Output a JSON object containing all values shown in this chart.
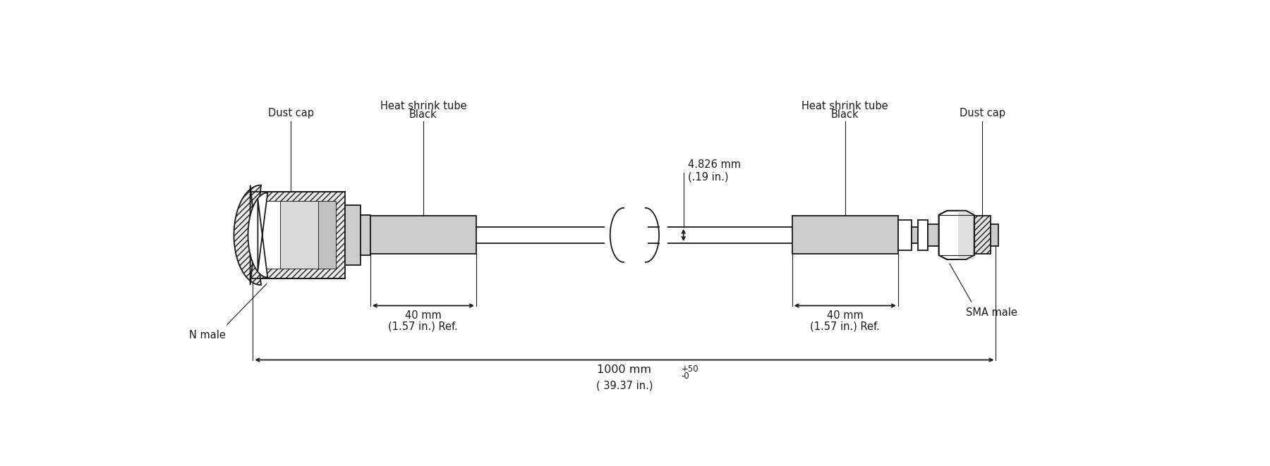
{
  "bg_color": "#ffffff",
  "line_color": "#1a1a1a",
  "fill_light_gray": "#cccccc",
  "fill_white": "#ffffff",
  "fill_hatch_gray": "#e0e0e0",
  "labels": {
    "dust_cap_left": "Dust cap",
    "dust_cap_right": "Dust cap",
    "heat_shrink_left": "Heat shrink tube\nBlack",
    "heat_shrink_right": "Heat shrink tube\nBlack",
    "cable_diam_line1": "4.826 mm",
    "cable_diam_line2": "(.19 in.)",
    "left_40mm_line1": "40 mm",
    "left_40mm_line2": "(1.57 in.) Ref.",
    "right_40mm_line1": "40 mm",
    "right_40mm_line2": "(1.57 in.) Ref.",
    "total_length_main": "1000 mm",
    "total_length_sup": "+50\n-0",
    "total_length_sub": "( 39.37 in.)",
    "n_male": "N male",
    "sma_male": "SMA male"
  },
  "font_size_label": 10.5,
  "font_size_dim": 10.5,
  "lw_main": 1.3,
  "lw_thin": 0.8
}
